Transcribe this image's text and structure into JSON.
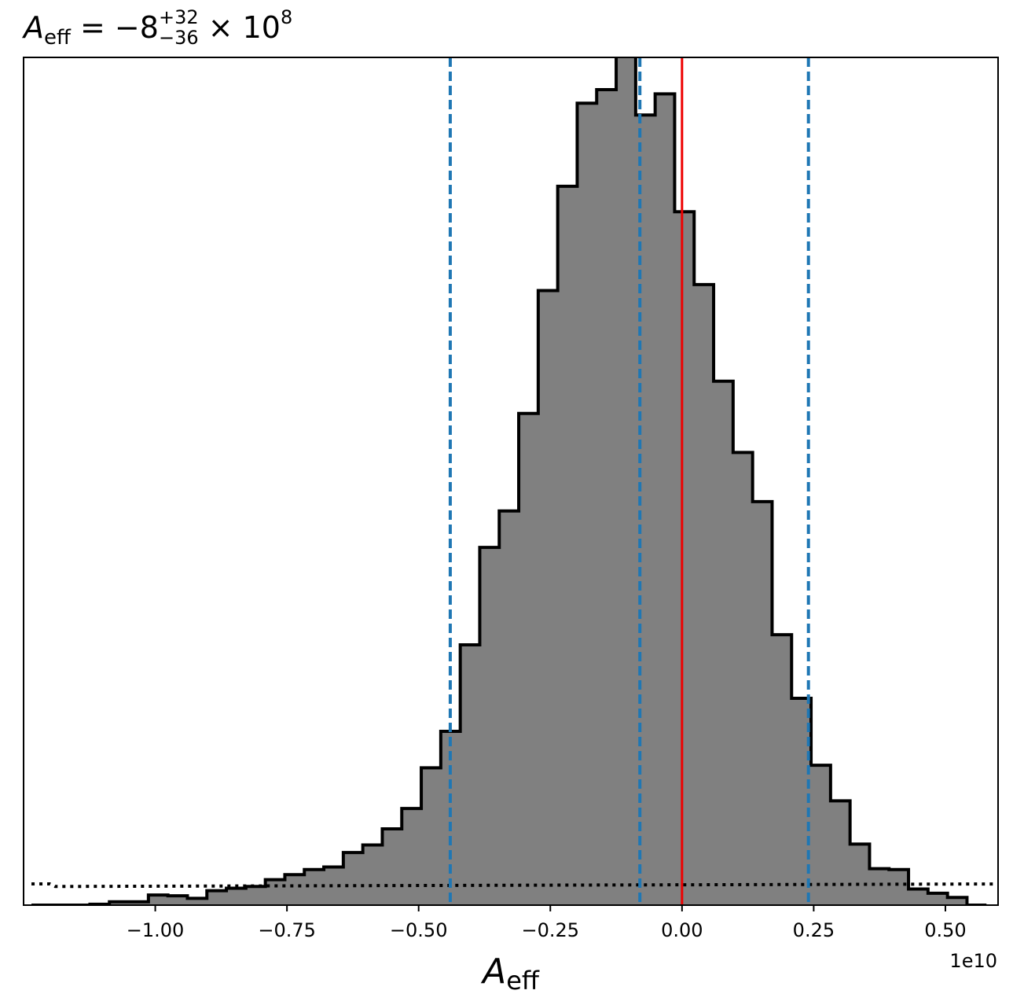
{
  "chart_data": {
    "type": "histogram",
    "title": {
      "symbol": "A",
      "symbol_subscript": "eff",
      "equals": " = ",
      "median": "−8",
      "upper": "+32",
      "lower": "−36",
      "times": " × 10",
      "exponent": "8"
    },
    "xlabel": {
      "symbol": "A",
      "subscript": "eff"
    },
    "x_offset_label": "1e10",
    "x_scale": 10000000000.0,
    "xlim": [
      -1.25,
      0.6
    ],
    "ylim": [
      0,
      1000
    ],
    "x_ticks": [
      -1.0,
      -0.75,
      -0.5,
      -0.25,
      0.0,
      0.25,
      0.5
    ],
    "x_tick_labels": [
      "−1.00",
      "−0.75",
      "−0.50",
      "−0.25",
      "0.00",
      "0.25",
      "0.50"
    ],
    "bin_edges": [
      -1.235,
      -1.198,
      -1.161,
      -1.124,
      -1.087,
      -1.05,
      -1.013,
      -0.976,
      -0.939,
      -0.902,
      -0.865,
      -0.828,
      -0.791,
      -0.754,
      -0.717,
      -0.68,
      -0.643,
      -0.606,
      -0.569,
      -0.532,
      -0.495,
      -0.458,
      -0.421,
      -0.384,
      -0.347,
      -0.31,
      -0.273,
      -0.236,
      -0.199,
      -0.162,
      -0.125,
      -0.088,
      -0.051,
      -0.014,
      0.023,
      0.06,
      0.097,
      0.134,
      0.171,
      0.208,
      0.245,
      0.282,
      0.319,
      0.356,
      0.393,
      0.43,
      0.467,
      0.504,
      0.541,
      0.578
    ],
    "counts": [
      0,
      0,
      0,
      1,
      4,
      4,
      12,
      11,
      8,
      17,
      20,
      22,
      30,
      36,
      42,
      45,
      62,
      71,
      90,
      114,
      162,
      205,
      307,
      422,
      465,
      580,
      725,
      848,
      946,
      962,
      1017,
      932,
      957,
      818,
      732,
      618,
      534,
      476,
      319,
      244,
      165,
      123,
      72,
      43,
      42,
      19,
      14,
      9,
      0
    ],
    "dotted_line_points": [
      [
        -1.235,
        25
      ],
      [
        -1.2,
        25
      ],
      [
        -1.19,
        22
      ],
      [
        0.6,
        25
      ]
    ],
    "vlines": [
      {
        "x": -0.44,
        "style": "dashed",
        "color": "#1f77b4"
      },
      {
        "x": -0.08,
        "style": "dashed",
        "color": "#1f77b4"
      },
      {
        "x": 0.24,
        "style": "dashed",
        "color": "#1f77b4"
      },
      {
        "x": 0.0,
        "style": "solid",
        "color": "#ee0000"
      }
    ],
    "colors": {
      "fill": "#808080",
      "edge": "#000000",
      "dotted": "#000000"
    },
    "grid": false
  }
}
